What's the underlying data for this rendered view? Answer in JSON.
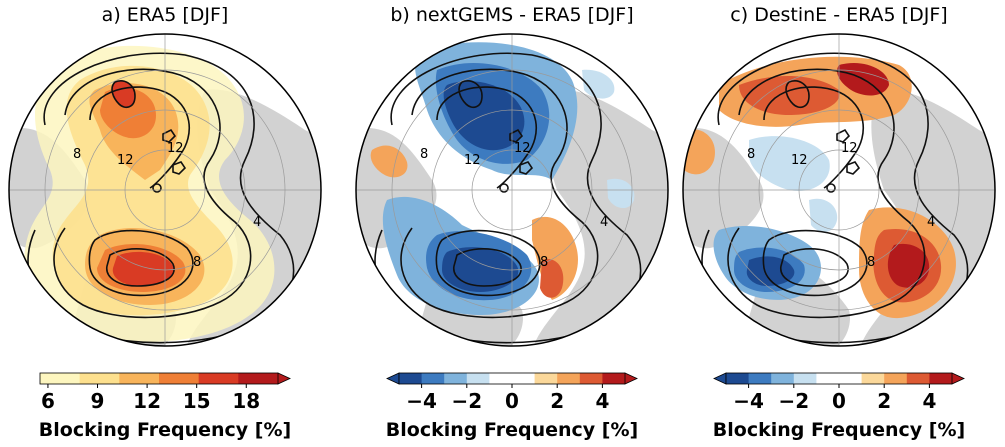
{
  "panels": [
    {
      "title": "a) ERA5 [DJF]",
      "colorbar": {
        "label": "Blocking Frequency [%]",
        "ticks": [
          "6",
          "9",
          "12",
          "15",
          "18"
        ],
        "colors": [
          "#fdf6bf",
          "#fde08e",
          "#f8b45b",
          "#ef7f36",
          "#d93b24",
          "#b31a1c"
        ],
        "extend": "max"
      },
      "contour_labels": [
        "8",
        "12",
        "12",
        "8",
        "4"
      ]
    },
    {
      "title": "b) nextGEMS - ERA5 [DJF]",
      "colorbar": {
        "label": "Blocking Frequency [%]",
        "ticks": [
          "−4",
          "−2",
          "0",
          "2",
          "4"
        ],
        "colors": [
          "#1d4a91",
          "#3d7bc0",
          "#7fb3dc",
          "#c7e0f0",
          "#ffffff",
          "#ffffff",
          "#fbd89a",
          "#f4a45a",
          "#dd5a33",
          "#b31a1c"
        ],
        "extend": "both"
      },
      "contour_labels": [
        "8",
        "12",
        "12",
        "8",
        "4"
      ]
    },
    {
      "title": "c) DestinE - ERA5 [DJF]",
      "colorbar": {
        "label": "Blocking Frequency [%]",
        "ticks": [
          "−4",
          "−2",
          "0",
          "2",
          "4"
        ],
        "colors": [
          "#1d4a91",
          "#3d7bc0",
          "#7fb3dc",
          "#c7e0f0",
          "#ffffff",
          "#ffffff",
          "#fbd89a",
          "#f4a45a",
          "#dd5a33",
          "#b31a1c"
        ],
        "extend": "both"
      },
      "contour_labels": [
        "8",
        "12",
        "12",
        "8",
        "4"
      ]
    }
  ]
}
